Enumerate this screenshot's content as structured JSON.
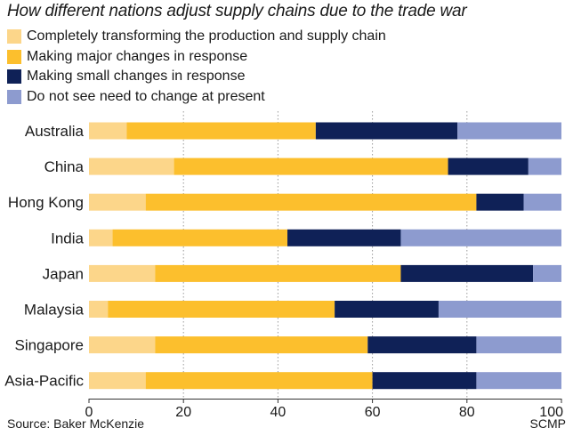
{
  "chart_data": {
    "type": "bar",
    "orientation": "horizontal",
    "stacked": true,
    "title": "How different nations adjust supply chains due to the trade war",
    "source": "Source: Baker McKenzie",
    "credit": "SCMP",
    "categories": [
      "Australia",
      "China",
      "Hong Kong",
      "India",
      "Japan",
      "Malaysia",
      "Singapore",
      "Asia-Pacific"
    ],
    "series": [
      {
        "name": "Completely transforming the production and supply chain",
        "color": "#fcd68a",
        "values": [
          8,
          18,
          12,
          5,
          14,
          4,
          14,
          12
        ]
      },
      {
        "name": "Making major changes in response",
        "color": "#fcbf2d",
        "values": [
          40,
          58,
          70,
          37,
          52,
          48,
          45,
          48
        ]
      },
      {
        "name": "Making small changes in response",
        "color": "#0f2157",
        "values": [
          30,
          17,
          10,
          24,
          28,
          22,
          23,
          22
        ]
      },
      {
        "name": "Do not see need to change at present",
        "color": "#8d9bcf",
        "values": [
          22,
          7,
          8,
          34,
          6,
          26,
          18,
          18
        ]
      }
    ],
    "xlim": [
      0,
      100
    ],
    "xticks": [
      0,
      20,
      40,
      60,
      80,
      100
    ],
    "grid": true,
    "legend_position": "top-left"
  }
}
